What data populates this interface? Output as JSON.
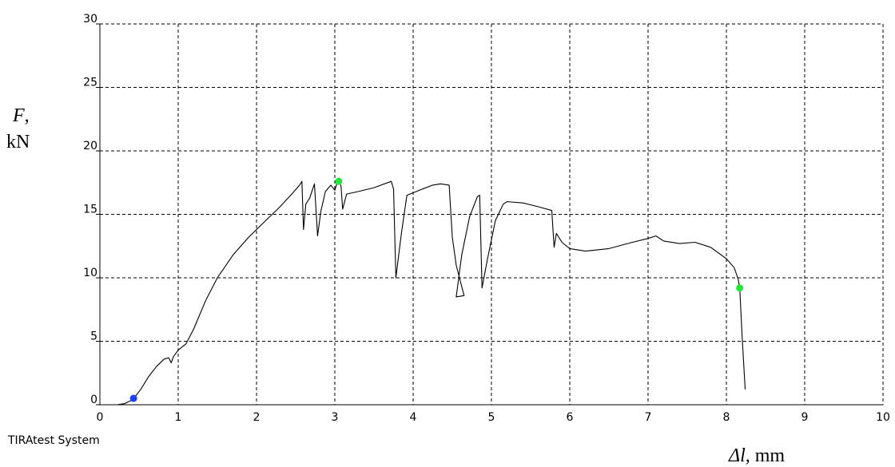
{
  "chart_data": {
    "type": "line",
    "title": "",
    "ylabel_var": "F",
    "ylabel_sep": ",",
    "ylabel_unit": "kN",
    "xlabel_var": "Δl,",
    "xlabel_unit": " mm",
    "xlim": [
      0,
      10
    ],
    "ylim": [
      0,
      30
    ],
    "x_ticks": [
      "0",
      "1",
      "2",
      "3",
      "4",
      "5",
      "6",
      "7",
      "8",
      "9",
      "10"
    ],
    "y_ticks": [
      "0",
      "5",
      "10",
      "15",
      "20",
      "25",
      "30"
    ],
    "grid": true,
    "footer": "TIRAtest System",
    "series": [
      {
        "color": "#000000",
        "points": [
          [
            0.22,
            0.0
          ],
          [
            0.32,
            0.1
          ],
          [
            0.42,
            0.4
          ],
          [
            0.52,
            1.2
          ],
          [
            0.62,
            2.2
          ],
          [
            0.72,
            3.0
          ],
          [
            0.82,
            3.6
          ],
          [
            0.88,
            3.7
          ],
          [
            0.91,
            3.3
          ],
          [
            0.94,
            3.8
          ],
          [
            1.0,
            4.3
          ],
          [
            1.04,
            4.5
          ],
          [
            1.1,
            4.8
          ],
          [
            1.2,
            6.0
          ],
          [
            1.35,
            8.2
          ],
          [
            1.5,
            10.0
          ],
          [
            1.7,
            11.8
          ],
          [
            1.9,
            13.2
          ],
          [
            2.1,
            14.4
          ],
          [
            2.3,
            15.6
          ],
          [
            2.45,
            16.6
          ],
          [
            2.55,
            17.3
          ],
          [
            2.58,
            17.6
          ],
          [
            2.6,
            13.8
          ],
          [
            2.63,
            15.8
          ],
          [
            2.68,
            16.3
          ],
          [
            2.74,
            17.4
          ],
          [
            2.78,
            13.3
          ],
          [
            2.82,
            15.2
          ],
          [
            2.88,
            16.8
          ],
          [
            2.95,
            17.3
          ],
          [
            3.0,
            16.9
          ],
          [
            3.03,
            17.5
          ],
          [
            3.05,
            17.8
          ],
          [
            3.08,
            17.2
          ],
          [
            3.1,
            15.4
          ],
          [
            3.15,
            16.6
          ],
          [
            3.3,
            16.8
          ],
          [
            3.5,
            17.1
          ],
          [
            3.72,
            17.6
          ],
          [
            3.75,
            17.0
          ],
          [
            3.78,
            10.0
          ],
          [
            3.85,
            13.5
          ],
          [
            3.92,
            16.5
          ],
          [
            4.0,
            16.7
          ],
          [
            4.12,
            17.0
          ],
          [
            4.25,
            17.3
          ],
          [
            4.35,
            17.4
          ],
          [
            4.46,
            17.3
          ],
          [
            4.5,
            13.2
          ],
          [
            4.55,
            11.0
          ],
          [
            4.6,
            9.8
          ],
          [
            4.65,
            8.6
          ],
          [
            4.55,
            8.5
          ],
          [
            4.62,
            11.8
          ],
          [
            4.72,
            14.8
          ],
          [
            4.82,
            16.4
          ],
          [
            4.85,
            16.5
          ],
          [
            4.88,
            9.2
          ],
          [
            4.95,
            11.5
          ],
          [
            5.05,
            14.5
          ],
          [
            5.15,
            15.8
          ],
          [
            5.2,
            16.0
          ],
          [
            5.4,
            15.9
          ],
          [
            5.6,
            15.6
          ],
          [
            5.77,
            15.3
          ],
          [
            5.8,
            12.4
          ],
          [
            5.83,
            13.5
          ],
          [
            5.9,
            12.8
          ],
          [
            6.0,
            12.3
          ],
          [
            6.2,
            12.1
          ],
          [
            6.5,
            12.3
          ],
          [
            6.8,
            12.8
          ],
          [
            7.0,
            13.1
          ],
          [
            7.1,
            13.3
          ],
          [
            7.2,
            12.9
          ],
          [
            7.4,
            12.7
          ],
          [
            7.6,
            12.8
          ],
          [
            7.8,
            12.4
          ],
          [
            8.0,
            11.5
          ],
          [
            8.1,
            10.8
          ],
          [
            8.15,
            9.9
          ],
          [
            8.17,
            9.2
          ],
          [
            8.2,
            5.5
          ],
          [
            8.24,
            1.2
          ]
        ]
      }
    ],
    "markers": [
      {
        "x": 0.43,
        "y": 0.5,
        "color": "#1f3fff"
      },
      {
        "x": 3.05,
        "y": 17.6,
        "color": "#22e63a"
      },
      {
        "x": 8.17,
        "y": 9.2,
        "color": "#22e63a"
      }
    ]
  }
}
